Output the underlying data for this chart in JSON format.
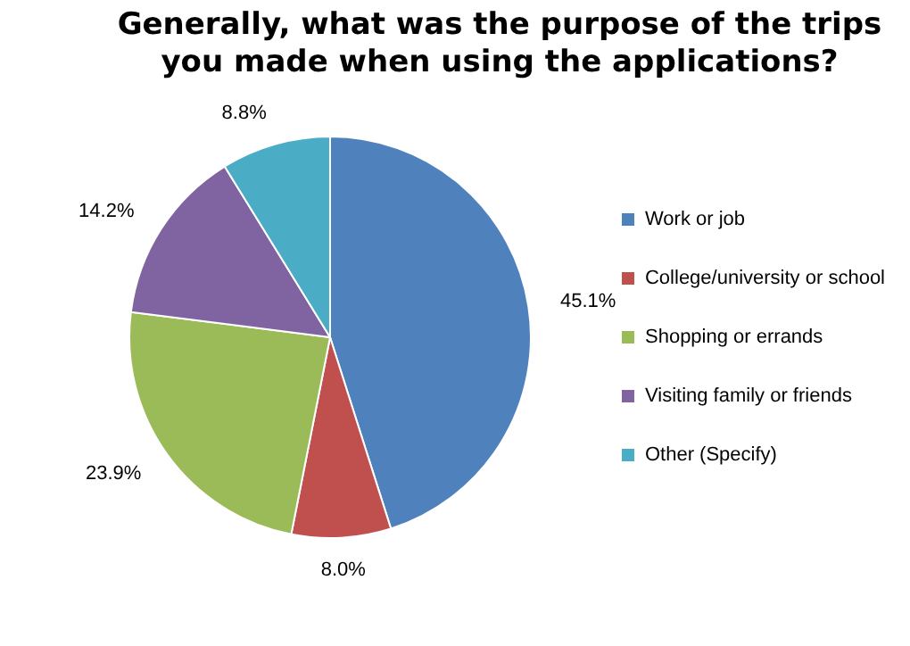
{
  "chart_data": {
    "type": "pie",
    "title": "Generally, what was the purpose of the trips you made when using the applications?",
    "categories": [
      "Work or job",
      "College/university or school",
      "Shopping or errands",
      "Visiting family or friends",
      "Other (Specify)"
    ],
    "values": [
      45.1,
      8.0,
      23.9,
      14.2,
      8.8
    ],
    "value_labels": [
      "45.1%",
      "8.0%",
      "23.9%",
      "14.2%",
      "8.8%"
    ],
    "colors": [
      "#4f81bd",
      "#c0504d",
      "#9bbb59",
      "#8064a2",
      "#4bacc6"
    ],
    "legend": "right"
  }
}
